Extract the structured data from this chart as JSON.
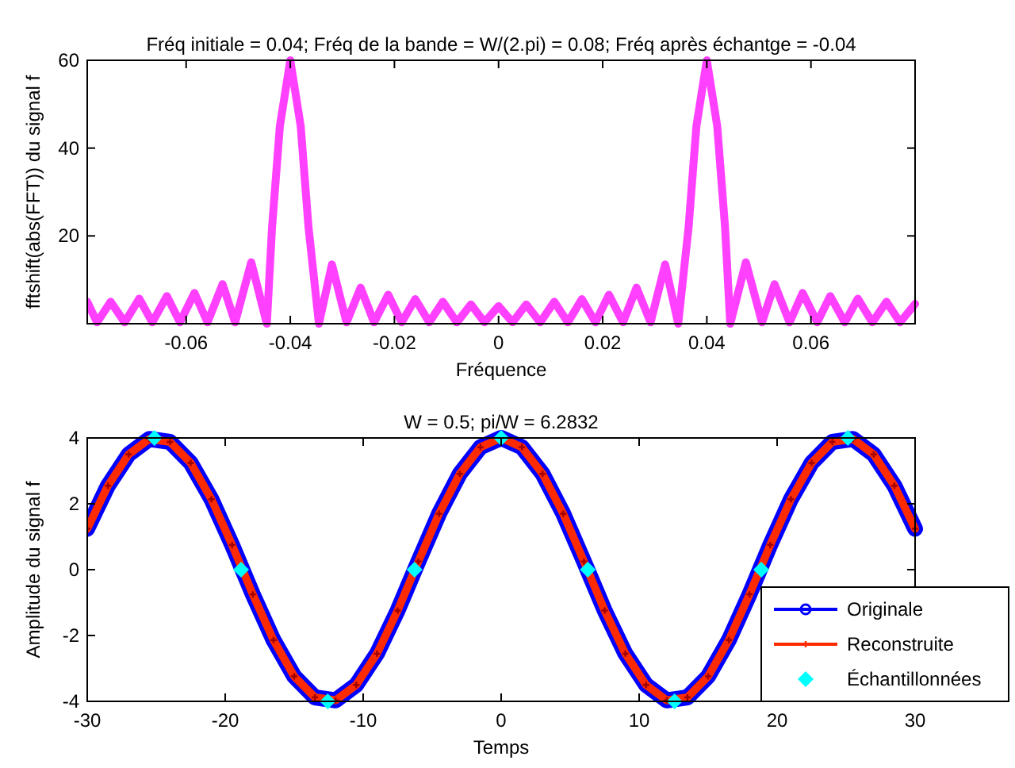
{
  "chart_data": [
    {
      "type": "line",
      "title": "Fréq initiale = 0.04; Fréq de la bande = W/(2.pi) = 0.08; Fréq après échantge = -0.04",
      "xlabel": "Fréquence",
      "ylabel": "fftshift(abs(FFT)) du signal f",
      "xlim": [
        -0.079,
        0.08
      ],
      "ylim": [
        0,
        60
      ],
      "xticks": [
        -0.06,
        -0.04,
        -0.02,
        0,
        0.02,
        0.04,
        0.06
      ],
      "yticks": [
        20,
        40,
        60
      ],
      "legend": false,
      "series": [
        {
          "color": "#ff40ff",
          "marker": "none",
          "x": [
            -0.079,
            -0.0771,
            -0.0745,
            -0.0718,
            -0.069,
            -0.0665,
            -0.0637,
            -0.0612,
            -0.0584,
            -0.0559,
            -0.053,
            -0.0506,
            -0.0475,
            -0.0445,
            -0.0435,
            -0.042,
            -0.04,
            -0.038,
            -0.0365,
            -0.0345,
            -0.032,
            -0.0292,
            -0.0265,
            -0.0239,
            -0.0212,
            -0.0186,
            -0.016,
            -0.0133,
            -0.0107,
            -0.008,
            -0.0053,
            -0.0027,
            0,
            0.0027,
            0.0053,
            0.008,
            0.0107,
            0.0133,
            0.016,
            0.0186,
            0.0212,
            0.0239,
            0.0265,
            0.0292,
            0.032,
            0.0345,
            0.0365,
            0.038,
            0.04,
            0.042,
            0.0435,
            0.0445,
            0.0475,
            0.0506,
            0.053,
            0.0559,
            0.0584,
            0.0612,
            0.0637,
            0.0665,
            0.069,
            0.0718,
            0.0745,
            0.0771,
            0.08
          ],
          "values": [
            5,
            0.3,
            5,
            0.3,
            5.7,
            0.3,
            6.3,
            0.3,
            7,
            0.3,
            9,
            0.3,
            14,
            0,
            22,
            45,
            60,
            45,
            22,
            0,
            13.5,
            0.3,
            8.2,
            0.3,
            6.6,
            0.3,
            5.6,
            0.3,
            5,
            0.3,
            4.4,
            0.3,
            4,
            0.3,
            4.4,
            0.3,
            5,
            0.3,
            5.6,
            0.3,
            6.6,
            0.3,
            8.2,
            0.3,
            13.5,
            0,
            22,
            45,
            60,
            45,
            22,
            0,
            14,
            0.3,
            9,
            0.3,
            7,
            0.3,
            6.3,
            0.3,
            5.7,
            0.3,
            5,
            0.3,
            4.5
          ]
        }
      ]
    },
    {
      "type": "line",
      "title": "W = 0.5; pi/W = 6.2832",
      "xlabel": "Temps",
      "ylabel": "Amplitude du signal f",
      "xlim": [
        -30,
        30
      ],
      "ylim": [
        -4,
        4
      ],
      "xticks": [
        -30,
        -20,
        -10,
        0,
        10,
        20,
        30
      ],
      "yticks": [
        -4,
        -2,
        0,
        2,
        4
      ],
      "legend": "bottom right",
      "series": [
        {
          "name": "Originale",
          "color": "#0000ff",
          "marker": "circle",
          "x": [
            -30,
            -28.5,
            -27,
            -25.5,
            -24,
            -22.5,
            -21,
            -19.5,
            -18,
            -16.5,
            -15,
            -13.5,
            -12,
            -10.5,
            -9,
            -7.5,
            -6,
            -4.5,
            -3,
            -1.5,
            0,
            1.5,
            3,
            4.5,
            6,
            7.5,
            9,
            10.5,
            12,
            13.5,
            15,
            16.5,
            18,
            19.5,
            21,
            22.5,
            24,
            25.5,
            27,
            28.5,
            30
          ],
          "values": [
            1.24,
            2.55,
            3.5,
            3.97,
            3.88,
            3.24,
            2.14,
            0.75,
            -0.75,
            -2.14,
            -3.24,
            -3.88,
            -3.97,
            -3.5,
            -2.55,
            -1.24,
            0.25,
            1.7,
            2.91,
            3.72,
            4,
            3.72,
            2.91,
            1.7,
            0.25,
            -1.24,
            -2.55,
            -3.5,
            -3.97,
            -3.88,
            -3.24,
            -2.14,
            -0.75,
            0.75,
            2.14,
            3.24,
            3.88,
            3.97,
            3.5,
            2.55,
            1.24
          ]
        },
        {
          "name": "Reconstruite",
          "color": "#ff2a00",
          "marker": "cross",
          "x": [
            -30,
            -28.5,
            -27,
            -25.5,
            -24,
            -22.5,
            -21,
            -19.5,
            -18,
            -16.5,
            -15,
            -13.5,
            -12,
            -10.5,
            -9,
            -7.5,
            -6,
            -4.5,
            -3,
            -1.5,
            0,
            1.5,
            3,
            4.5,
            6,
            7.5,
            9,
            10.5,
            12,
            13.5,
            15,
            16.5,
            18,
            19.5,
            21,
            22.5,
            24,
            25.5,
            27,
            28.5,
            30
          ],
          "values": [
            1.24,
            2.55,
            3.5,
            3.97,
            3.88,
            3.24,
            2.14,
            0.75,
            -0.75,
            -2.14,
            -3.24,
            -3.88,
            -3.97,
            -3.5,
            -2.55,
            -1.24,
            0.25,
            1.7,
            2.91,
            3.72,
            4,
            3.72,
            2.91,
            1.7,
            0.25,
            -1.24,
            -2.55,
            -3.5,
            -3.97,
            -3.88,
            -3.24,
            -2.14,
            -0.75,
            0.75,
            2.14,
            3.24,
            3.88,
            3.97,
            3.5,
            2.55,
            1.24
          ]
        },
        {
          "name": "Échantillonnées",
          "type": "scatter",
          "color": "#00ffff",
          "marker": "diamond",
          "x": [
            -25.13,
            -18.85,
            -12.57,
            -6.28,
            0,
            6.28,
            12.57,
            18.85,
            25.13
          ],
          "values": [
            4,
            0,
            -4,
            0,
            4,
            0,
            -4,
            0,
            4
          ]
        }
      ]
    }
  ]
}
